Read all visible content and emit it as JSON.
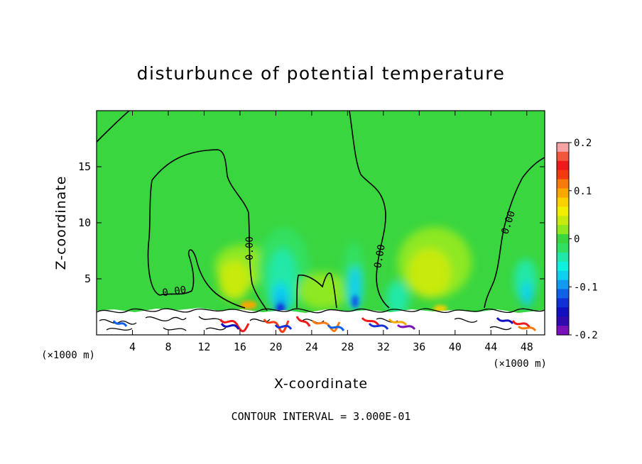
{
  "chart_data": {
    "type": "heatmap",
    "title": "disturbunce of potential temperature",
    "xlabel": "X-coordinate",
    "ylabel": "Z-coordinate",
    "x_unit_left": "(×1000 m)",
    "x_unit_right": "(×1000 m)",
    "xlim": [
      0,
      50
    ],
    "ylim": [
      0,
      20
    ],
    "x_ticks": [
      4,
      8,
      12,
      16,
      20,
      24,
      28,
      32,
      36,
      40,
      44,
      48
    ],
    "y_ticks": [
      5,
      10,
      15
    ],
    "colorbar": {
      "range": [
        -0.2,
        0.2
      ],
      "tick_labels": [
        "0.2",
        "0.1",
        "0",
        "-0.1",
        "-0.2"
      ],
      "colors": [
        "#f7a3a3",
        "#f2573b",
        "#ee1a1a",
        "#f23a10",
        "#f77a0a",
        "#f9a800",
        "#fad000",
        "#f2ee00",
        "#c8ea10",
        "#8ee820",
        "#3ad640",
        "#30e060",
        "#20e8a8",
        "#10f0e0",
        "#10d0f0",
        "#109af0",
        "#1060e8",
        "#1030d8",
        "#1010c0",
        "#300ab0",
        "#7a10b8"
      ]
    },
    "contour_labels": [
      "0.00",
      "0.00",
      "0.00",
      "0.00"
    ],
    "contour_interval": "CONTOUR INTERVAL = 3.000E-01",
    "background_color": "#3ad640"
  }
}
